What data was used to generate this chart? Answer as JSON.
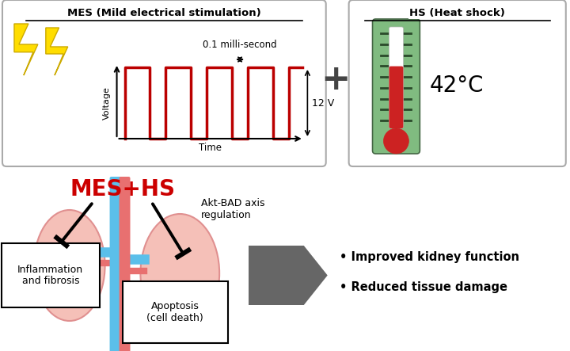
{
  "bg_color": "#ffffff",
  "mes_box_title": "MES (Mild electrical stimulation)",
  "hs_box_title": "HS (Heat shock)",
  "pulse_label_top": "0.1 milli-second",
  "pulse_label_right": "12 V",
  "voltage_label": "Voltage",
  "time_label": "Time",
  "temp_label": "42°C",
  "mes_hs_label": "MES+HS",
  "mes_hs_color": "#cc0000",
  "inflammation_label": "Inflammation\nand fibrosis",
  "apoptosis_label": "Apoptosis\n(cell death)",
  "akt_label": "Akt-BAD axis\nregulation",
  "outcome1": "Improved kidney function",
  "outcome2": "Reduced tissue damage",
  "kidney_color": "#f5c0b8",
  "kidney_edge": "#e09090",
  "vessel_blue": "#5bbfea",
  "vessel_red": "#e87070",
  "lightning_color": "#ffdd00",
  "lightning_edge": "#ccaa00",
  "pulse_color": "#bb0000",
  "therm_bg": "#80bb80",
  "therm_liquid": "#cc2222",
  "box_edge_color": "#aaaaaa",
  "plus_color": "#444444",
  "arrow_fill": "#666666"
}
